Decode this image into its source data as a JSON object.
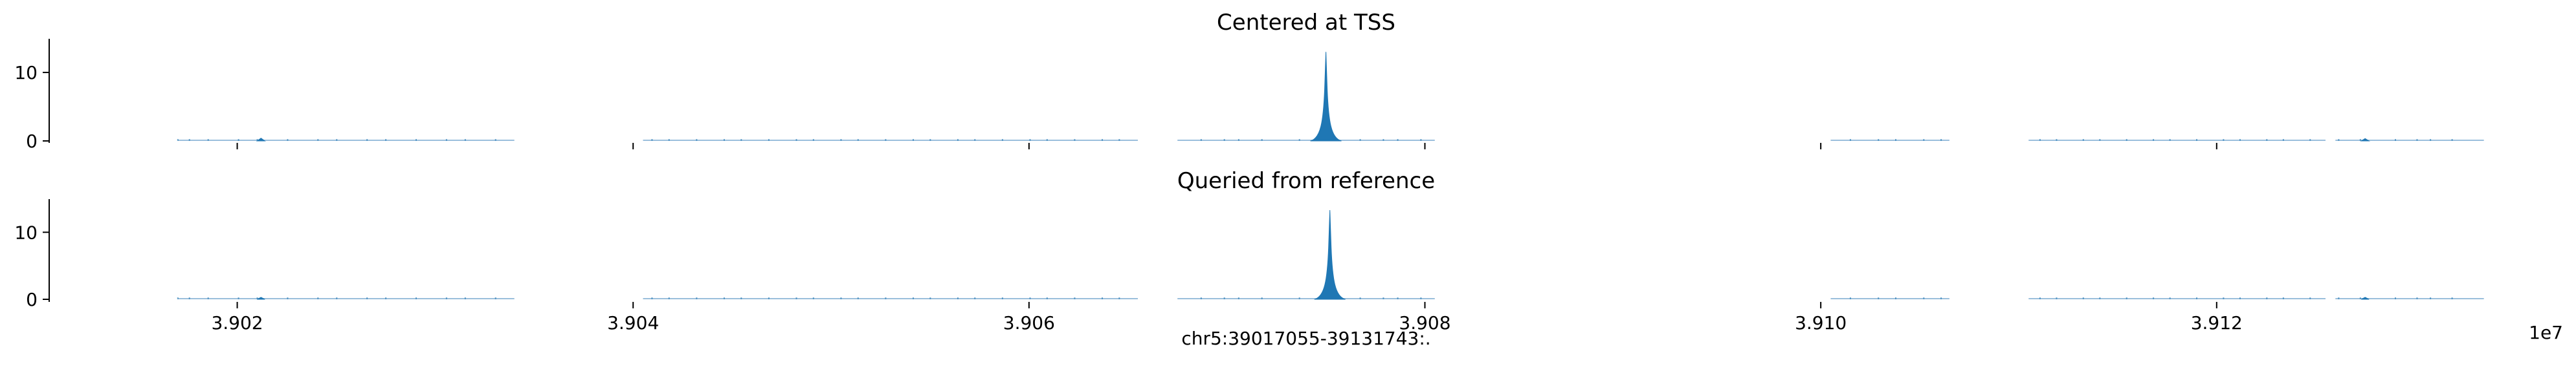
{
  "chart_data": [
    {
      "type": "area",
      "title": "Centered at TSS",
      "ylim": [
        0,
        14
      ],
      "yticks": [
        0,
        10
      ],
      "ytick_labels": [
        "0",
        "10"
      ],
      "xlim": [
        3.90105,
        3.91375
      ],
      "x_scale": "1e7",
      "grid": false,
      "color": "#1f77b4",
      "peaks": [
        {
          "x": 3.9075,
          "y": 13.0
        },
        {
          "x": 3.90212,
          "y": 0.4
        },
        {
          "x": 3.91275,
          "y": 0.35
        }
      ],
      "baseline_segments": [
        [
          3.9017,
          3.9034
        ],
        [
          3.90405,
          3.90655
        ],
        [
          3.90675,
          3.90805
        ],
        [
          3.91005,
          3.91065
        ],
        [
          3.91105,
          3.91255
        ],
        [
          3.9126,
          3.91335
        ]
      ]
    },
    {
      "type": "area",
      "title": "Queried from reference",
      "ylim": [
        0,
        14
      ],
      "yticks": [
        0,
        10
      ],
      "ytick_labels": [
        "0",
        "10"
      ],
      "xlim": [
        3.90105,
        3.91375
      ],
      "x_scale": "1e7",
      "xticks": [
        3.902,
        3.904,
        3.906,
        3.908,
        3.91,
        3.912
      ],
      "xtick_labels": [
        "3.902",
        "3.904",
        "3.906",
        "3.908",
        "3.910",
        "3.912"
      ],
      "xlabel": "chr5:39017055-39131743:.",
      "offset_label": "1e7",
      "grid": false,
      "color": "#1f77b4",
      "peaks": [
        {
          "x": 3.90752,
          "y": 13.3
        },
        {
          "x": 3.90212,
          "y": 0.3
        },
        {
          "x": 3.91275,
          "y": 0.3
        }
      ],
      "baseline_segments": [
        [
          3.9017,
          3.9034
        ],
        [
          3.90405,
          3.90655
        ],
        [
          3.90675,
          3.90805
        ],
        [
          3.91005,
          3.91065
        ],
        [
          3.91105,
          3.91255
        ],
        [
          3.9126,
          3.91335
        ]
      ]
    }
  ]
}
